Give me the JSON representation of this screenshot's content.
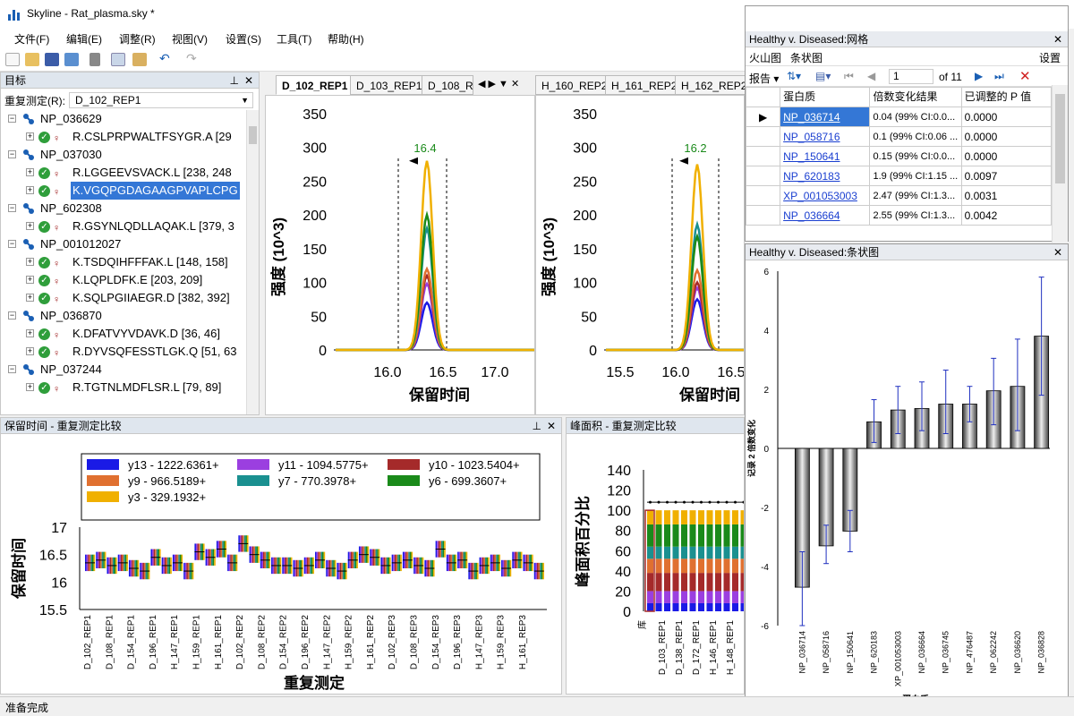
{
  "app": {
    "title": "Skyline - Rat_plasma.sky *"
  },
  "menu": [
    "文件(F)",
    "编辑(E)",
    "调整(R)",
    "视图(V)",
    "设置(S)",
    "工具(T)",
    "帮助(H)"
  ],
  "targets": {
    "title": "目标",
    "replicate_label": "重复测定(R):",
    "replicate_value": "D_102_REP1",
    "nodes": [
      {
        "type": "protein",
        "label": "NP_036629"
      },
      {
        "type": "peptide",
        "label": "R.CSLPRPWALTFSYGR.A [29"
      },
      {
        "type": "protein",
        "label": "NP_037030"
      },
      {
        "type": "peptide",
        "label": "R.LGGEEVSVACK.L [238, 248"
      },
      {
        "type": "peptide",
        "label": "K.VGQPGDAGAAGPVAPLCPG",
        "selected": true
      },
      {
        "type": "protein",
        "label": "NP_602308"
      },
      {
        "type": "peptide",
        "label": "R.GSYNLQDLLAQAK.L [379, 3"
      },
      {
        "type": "protein",
        "label": "NP_001012027"
      },
      {
        "type": "peptide",
        "label": "K.TSDQIHFFFAK.L [148, 158]"
      },
      {
        "type": "peptide",
        "label": "K.LQPLDFK.E [203, 209]"
      },
      {
        "type": "peptide",
        "label": "K.SQLPGIIAEGR.D [382, 392]"
      },
      {
        "type": "protein",
        "label": "NP_036870"
      },
      {
        "type": "peptide",
        "label": "K.DFATVYVDAVK.D [36, 46]"
      },
      {
        "type": "peptide",
        "label": "R.DYVSQFESSTLGK.Q [51, 63"
      },
      {
        "type": "protein",
        "label": "NP_037244"
      },
      {
        "type": "peptide",
        "label": "R.TGTNLMDFLSR.L [79, 89]"
      }
    ]
  },
  "chrom_tabs": {
    "left": [
      "D_102_REP1",
      "D_103_REP1",
      "D_108_RE"
    ],
    "right": [
      "H_160_REP2",
      "H_161_REP2",
      "H_162_REP2"
    ]
  },
  "chrom_left": {
    "ylabel": "强度 (10^3)",
    "xlabel": "保留时间",
    "yticks": [
      "350",
      "300",
      "250",
      "200",
      "150",
      "100",
      "50",
      "0"
    ],
    "xticks": [
      "16.0",
      "16.5",
      "17.0"
    ],
    "peak_label": "16.4"
  },
  "chrom_right": {
    "ylabel": "强度 (10^3)",
    "xlabel": "保留时间",
    "yticks": [
      "350",
      "300",
      "250",
      "200",
      "150",
      "100",
      "50",
      "0"
    ],
    "xticks": [
      "15.5",
      "16.0",
      "16.5"
    ],
    "peak_label": "16.2"
  },
  "rt_panel": {
    "title": "保留时间 - 重复测定比较",
    "ylabel": "保留时间",
    "xlabel": "重复测定",
    "yticks": [
      "17",
      "16.5",
      "16",
      "15.5"
    ],
    "legend": [
      {
        "label": "y13 - 1222.6361+",
        "color": "#1a1ae6"
      },
      {
        "label": "y11 - 1094.5775+",
        "color": "#9b3fe0"
      },
      {
        "label": "y10 - 1023.5404+",
        "color": "#a52a2a"
      },
      {
        "label": "y9 - 966.5189+",
        "color": "#e07030"
      },
      {
        "label": "y7 - 770.3978+",
        "color": "#1a9090"
      },
      {
        "label": "y6 - 699.3607+",
        "color": "#1a8a1a"
      },
      {
        "label": "y3 - 329.1932+",
        "color": "#f0b000"
      }
    ],
    "xticks": [
      "D_102_REP1",
      "D_108_REP1",
      "D_154_REP1",
      "D_196_REP1",
      "H_147_REP1",
      "H_159_REP1",
      "H_161_REP1",
      "D_102_REP2",
      "D_108_REP2",
      "D_154_REP2",
      "D_196_REP2",
      "H_147_REP2",
      "H_159_REP2",
      "H_161_REP2",
      "D_102_REP3",
      "D_108_REP3",
      "D_154_REP3",
      "D_196_REP3",
      "H_147_REP3",
      "H_159_REP3",
      "H_161_REP3"
    ]
  },
  "area_panel": {
    "title": "峰面积 - 重复测定比较",
    "ylabel": "峰面积百分比",
    "yticks": [
      "140",
      "120",
      "100",
      "80",
      "60",
      "40",
      "20",
      "0"
    ],
    "xticks": [
      "D_103_REP1",
      "D_138_REP1",
      "D_172_REP1",
      "H_146_REP1",
      "H_148_REP1"
    ],
    "extra_tick": "库",
    "stack_fractions": [
      {
        "color": "#1a1ae6",
        "value": 0.08
      },
      {
        "color": "#9b3fe0",
        "value": 0.12
      },
      {
        "color": "#a52a2a",
        "value": 0.18
      },
      {
        "color": "#e07030",
        "value": 0.14
      },
      {
        "color": "#1a9090",
        "value": 0.12
      },
      {
        "color": "#1a8a1a",
        "value": 0.22
      },
      {
        "color": "#f0b000",
        "value": 0.14
      }
    ]
  },
  "grid_panel": {
    "title": "Healthy v. Diseased:网格",
    "tabs": [
      "火山图",
      "条状图"
    ],
    "settings": "设置",
    "report_label": "报告",
    "page_value": "1",
    "page_total": "of 11",
    "columns": [
      "蛋白质",
      "倍数变化结果",
      "已调整的 P 值"
    ],
    "rows": [
      {
        "protein": "NP_036714",
        "fold": "0.04 (99% CI:0.0...",
        "p": "0.0000"
      },
      {
        "protein": "NP_058716",
        "fold": "0.1 (99% CI:0.06 ...",
        "p": "0.0000"
      },
      {
        "protein": "NP_150641",
        "fold": "0.15 (99% CI:0.0...",
        "p": "0.0000"
      },
      {
        "protein": "NP_620183",
        "fold": "1.9 (99% CI:1.15 ...",
        "p": "0.0097"
      },
      {
        "protein": "XP_001053003",
        "fold": "2.47 (99% CI:1.3...",
        "p": "0.0031"
      },
      {
        "protein": "NP_036664",
        "fold": "2.55 (99% CI:1.3...",
        "p": "0.0042"
      }
    ]
  },
  "bar_panel": {
    "title": "Healthy v. Diseased:条状图",
    "ylabel": "记录 2 倍数变化",
    "xlabel": "蛋白质",
    "chart_data": {
      "type": "bar",
      "categories": [
        "NP_036714",
        "NP_058716",
        "NP_150641",
        "NP_620183",
        "XP_001053003",
        "NP_036664",
        "NP_036745",
        "NP_476487",
        "NP_062242",
        "NP_036620",
        "NP_036828"
      ],
      "values": [
        -4.7,
        -3.3,
        -2.8,
        0.9,
        1.3,
        1.35,
        1.5,
        1.5,
        1.95,
        2.1,
        3.8
      ],
      "err_lo": [
        -6.0,
        -3.9,
        -3.5,
        0.2,
        0.5,
        0.6,
        0.5,
        0.9,
        0.8,
        0.6,
        1.8
      ],
      "err_hi": [
        -3.5,
        -2.6,
        -2.1,
        1.65,
        2.1,
        2.25,
        2.65,
        2.1,
        3.05,
        3.7,
        5.8
      ],
      "ylim": [
        -6,
        6
      ],
      "yticks": [
        -6,
        -4,
        -2,
        0,
        2,
        4,
        6
      ]
    }
  },
  "status": {
    "text": "准备完成"
  }
}
